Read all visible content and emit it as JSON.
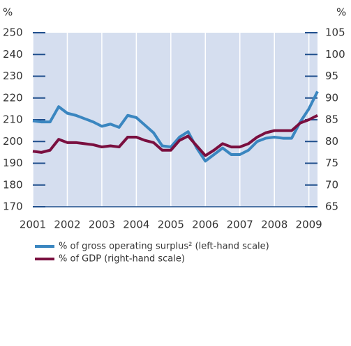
{
  "chart_data": {
    "type": "line",
    "ylabel": "%",
    "y2label": "%",
    "x": [
      2001,
      2001.25,
      2001.5,
      2001.75,
      2002,
      2002.25,
      2002.5,
      2002.75,
      2003,
      2003.25,
      2003.5,
      2003.75,
      2004,
      2004.25,
      2004.5,
      2004.75,
      2005,
      2005.25,
      2005.5,
      2005.75,
      2006,
      2006.25,
      2006.5,
      2006.75,
      2007,
      2007.25,
      2007.5,
      2007.75,
      2008,
      2008.25,
      2008.5,
      2008.75,
      2009,
      2009.25
    ],
    "xlim": [
      2001,
      2009.25
    ],
    "xticks": [
      2001,
      2002,
      2003,
      2004,
      2005,
      2006,
      2007,
      2008,
      2009
    ],
    "ylim": [
      170,
      250
    ],
    "yticks": [
      170,
      180,
      190,
      200,
      210,
      220,
      230,
      240,
      250
    ],
    "y2lim": [
      65,
      105
    ],
    "y2ticks": [
      65,
      70,
      75,
      80,
      85,
      90,
      95,
      100,
      105
    ],
    "background": "#d5deef",
    "series": [
      {
        "name": "% of gross operating surplus² (left-hand scale)",
        "color": "#3a86c0",
        "axis": "y",
        "values": [
          209.5,
          209,
          209,
          216,
          213,
          212,
          210.5,
          209,
          207,
          208,
          206.5,
          212,
          211,
          207.5,
          204,
          198,
          197.5,
          202,
          204.5,
          197,
          191,
          194,
          197,
          194,
          194,
          196,
          200,
          201.5,
          202,
          201.5,
          201.5,
          209,
          215,
          223
        ]
      },
      {
        "name": "% of GDP (right-hand scale)",
        "color": "#7a0f3f",
        "axis": "y2",
        "values": [
          77.75,
          77.5,
          78,
          80.5,
          79.75,
          79.75,
          79.5,
          79.25,
          78.75,
          79,
          78.75,
          81,
          81,
          80.25,
          79.75,
          78,
          78,
          80.25,
          81.25,
          79,
          76.75,
          78,
          79.5,
          78.75,
          78.75,
          79.5,
          81,
          82,
          82.5,
          82.5,
          82.5,
          84.25,
          85,
          86
        ]
      }
    ]
  }
}
